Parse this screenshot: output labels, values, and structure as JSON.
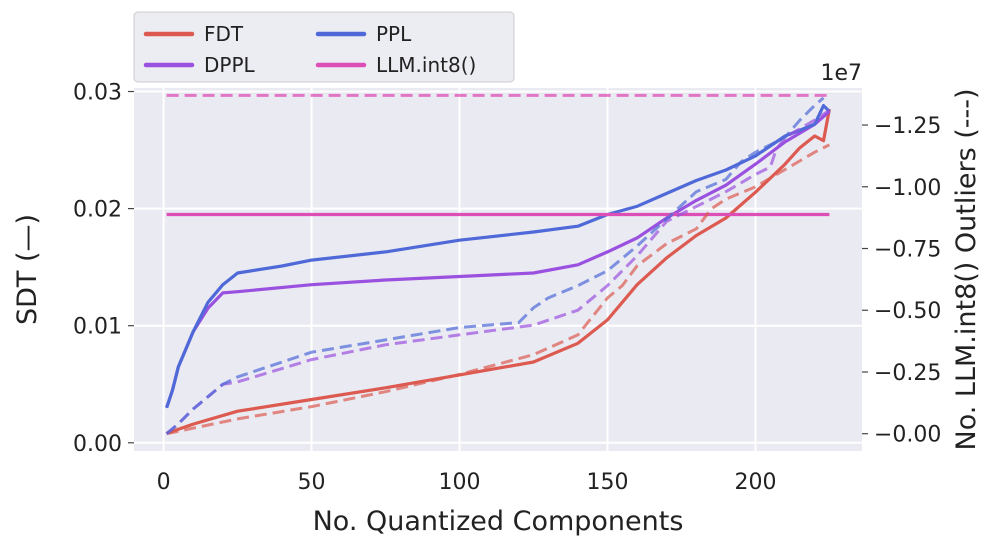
{
  "chart_data": {
    "type": "line",
    "xlabel": "No. Quantized Components",
    "ylabel_left": "SDT (—)",
    "ylabel_right": "No. LLM.int8() Outliers (---)",
    "right_axis_multiplier": "1e7",
    "xlim": [
      -10,
      236
    ],
    "ylim_left": [
      -0.0007,
      0.0303
    ],
    "ylim_right": [
      -0.07,
      1.4
    ],
    "x_ticks": [
      0,
      50,
      100,
      150,
      200
    ],
    "y_ticks_left": [
      0.0,
      0.01,
      0.02,
      0.03
    ],
    "y_tick_labels_left": [
      "0.00",
      "0.01",
      "0.02",
      "0.03"
    ],
    "y_ticks_right": [
      0.0,
      0.25,
      0.5,
      0.75,
      1.0,
      1.25
    ],
    "y_tick_labels_right": [
      "0.00",
      "0.25",
      "0.50",
      "0.75",
      "1.00",
      "1.25"
    ],
    "grid": true,
    "legend_position": "top-left",
    "legend_entries": [
      "FDT",
      "DPPL",
      "PPL",
      "LLM.int8()"
    ],
    "colors": {
      "FDT": "#dc5a50",
      "DPPL": "#9b51e0",
      "PPL": "#4f6ad8",
      "LLM.int8()": "#dd4fb6",
      "plot_bg": "#eaeaf2",
      "grid": "#ffffff"
    },
    "series_sdt": [
      {
        "name": "FDT",
        "x": [
          1,
          10,
          25,
          50,
          75,
          100,
          125,
          140,
          150,
          155,
          160,
          170,
          180,
          190,
          200,
          210,
          215,
          220,
          223,
          225
        ],
        "y": [
          0.0008,
          0.0016,
          0.0027,
          0.0037,
          0.0047,
          0.0058,
          0.0069,
          0.0085,
          0.0105,
          0.012,
          0.0135,
          0.0158,
          0.0177,
          0.0192,
          0.0214,
          0.0238,
          0.0252,
          0.0262,
          0.0258,
          0.0285
        ]
      },
      {
        "name": "DPPL",
        "x": [
          1,
          3,
          5,
          10,
          15,
          20,
          25,
          50,
          75,
          100,
          125,
          140,
          150,
          160,
          170,
          180,
          190,
          200,
          210,
          220,
          225
        ],
        "y": [
          0.003,
          0.0045,
          0.0065,
          0.0095,
          0.0115,
          0.0128,
          0.0129,
          0.0135,
          0.0139,
          0.0142,
          0.0145,
          0.0152,
          0.0163,
          0.0175,
          0.0192,
          0.0207,
          0.022,
          0.0238,
          0.0257,
          0.0272,
          0.0283
        ]
      },
      {
        "name": "PPL",
        "x": [
          1,
          3,
          5,
          10,
          15,
          20,
          25,
          40,
          50,
          75,
          100,
          125,
          140,
          150,
          160,
          170,
          180,
          190,
          200,
          210,
          220,
          223,
          225
        ],
        "y": [
          0.003,
          0.0045,
          0.0065,
          0.0095,
          0.012,
          0.0135,
          0.0145,
          0.0151,
          0.0156,
          0.0163,
          0.0173,
          0.018,
          0.0185,
          0.0195,
          0.0202,
          0.0213,
          0.0224,
          0.0233,
          0.0245,
          0.0262,
          0.0272,
          0.0288,
          0.0283
        ]
      },
      {
        "name": "LLM.int8()",
        "x": [
          1,
          225
        ],
        "y": [
          0.0195,
          0.0195
        ]
      }
    ],
    "series_outliers": [
      {
        "name": "FDT",
        "x": [
          1,
          25,
          50,
          75,
          100,
          125,
          140,
          150,
          155,
          160,
          170,
          180,
          185,
          190,
          200,
          210,
          220,
          225
        ],
        "y": [
          0.0,
          0.06,
          0.11,
          0.17,
          0.24,
          0.32,
          0.4,
          0.55,
          0.6,
          0.68,
          0.77,
          0.83,
          0.91,
          0.95,
          1.0,
          1.07,
          1.14,
          1.17
        ]
      },
      {
        "name": "DPPL",
        "x": [
          1,
          5,
          10,
          15,
          20,
          25,
          50,
          75,
          100,
          125,
          140,
          150,
          160,
          170,
          180,
          190,
          200,
          205,
          207,
          210,
          220,
          225
        ],
        "y": [
          0.0,
          0.04,
          0.1,
          0.15,
          0.2,
          0.21,
          0.3,
          0.36,
          0.4,
          0.44,
          0.5,
          0.6,
          0.72,
          0.86,
          0.92,
          0.98,
          1.05,
          1.08,
          1.15,
          1.2,
          1.27,
          1.31
        ]
      },
      {
        "name": "PPL",
        "x": [
          1,
          5,
          10,
          15,
          20,
          25,
          50,
          75,
          100,
          120,
          125,
          130,
          140,
          150,
          160,
          170,
          180,
          190,
          195,
          200,
          210,
          215,
          220,
          223
        ],
        "y": [
          0.0,
          0.04,
          0.1,
          0.15,
          0.2,
          0.23,
          0.33,
          0.38,
          0.43,
          0.45,
          0.51,
          0.55,
          0.6,
          0.66,
          0.76,
          0.87,
          0.98,
          1.03,
          1.1,
          1.14,
          1.2,
          1.27,
          1.33,
          1.36
        ]
      },
      {
        "name": "LLM.int8()",
        "x": [
          1,
          225
        ],
        "y": [
          1.37,
          1.37
        ]
      }
    ]
  }
}
